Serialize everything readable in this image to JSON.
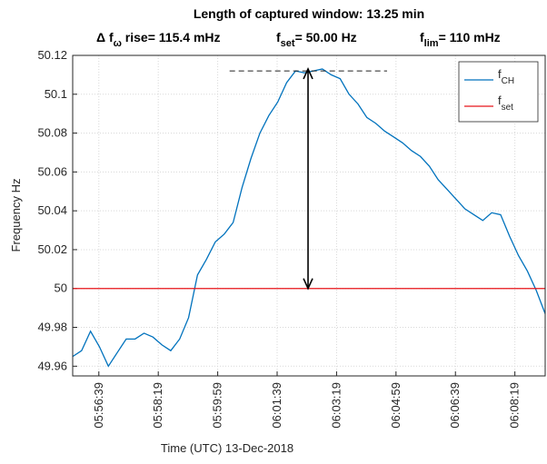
{
  "chart_data": {
    "type": "line",
    "title": "Length of captured window: 13.25 min",
    "subtitle_parts": [
      {
        "text": "Δ f",
        "sub": "ω",
        "rest": " rise= 115.4 mHz"
      },
      {
        "text": "f",
        "sub": "set",
        "rest": "= 50.00 Hz"
      },
      {
        "text": "f",
        "sub": "lim",
        "rest": "= 110 mHz"
      }
    ],
    "xlabel": "Time (UTC) 13-Dec-2018",
    "ylabel": "Frequency Hz",
    "xlim": [
      "05:55:55",
      "06:09:10"
    ],
    "xticks": [
      "05:56:39",
      "05:58:19",
      "05:59:59",
      "06:01:39",
      "06:03:19",
      "06:04:59",
      "06:06:39",
      "06:08:19"
    ],
    "ylim": [
      49.955,
      50.12
    ],
    "yticks": [
      49.96,
      49.98,
      50,
      50.02,
      50.04,
      50.06,
      50.08,
      50.1,
      50.12
    ],
    "grid": true,
    "legend": "northeast",
    "series": [
      {
        "name": "f",
        "subscript": "CH",
        "color": "#0072bd",
        "x": [
          "05:55:55",
          "05:56:10",
          "05:56:25",
          "05:56:40",
          "05:56:55",
          "05:57:10",
          "05:57:25",
          "05:57:40",
          "05:57:55",
          "05:58:10",
          "05:58:25",
          "05:58:40",
          "05:58:55",
          "05:59:10",
          "05:59:25",
          "05:59:40",
          "05:59:55",
          "06:00:10",
          "06:00:25",
          "06:00:40",
          "06:00:55",
          "06:01:10",
          "06:01:25",
          "06:01:40",
          "06:01:55",
          "06:02:10",
          "06:02:25",
          "06:02:40",
          "06:02:55",
          "06:03:10",
          "06:03:25",
          "06:03:40",
          "06:03:55",
          "06:04:10",
          "06:04:25",
          "06:04:40",
          "06:04:55",
          "06:05:10",
          "06:05:25",
          "06:05:40",
          "06:05:55",
          "06:06:10",
          "06:06:25",
          "06:06:40",
          "06:06:55",
          "06:07:10",
          "06:07:25",
          "06:07:40",
          "06:07:55",
          "06:08:10",
          "06:08:25",
          "06:08:40",
          "06:08:55",
          "06:09:10"
        ],
        "values": [
          49.965,
          49.968,
          49.978,
          49.97,
          49.96,
          49.967,
          49.974,
          49.974,
          49.977,
          49.975,
          49.971,
          49.968,
          49.974,
          49.985,
          50.007,
          50.015,
          50.024,
          50.028,
          50.034,
          50.052,
          50.067,
          50.08,
          50.089,
          50.096,
          50.106,
          50.112,
          50.111,
          50.112,
          50.113,
          50.11,
          50.108,
          50.1,
          50.095,
          50.088,
          50.085,
          50.081,
          50.078,
          50.075,
          50.071,
          50.068,
          50.063,
          50.056,
          50.051,
          50.046,
          50.041,
          50.038,
          50.035,
          50.039,
          50.038,
          50.027,
          50.017,
          50.009,
          49.999,
          49.987
        ]
      },
      {
        "name": "f",
        "subscript": "set",
        "color": "#e8141a",
        "x": [
          "05:55:55",
          "06:09:10"
        ],
        "values": [
          50,
          50
        ]
      }
    ],
    "hline": {
      "x": [
        "06:00:19",
        "06:04:44"
      ],
      "y": 50.112
    },
    "arrow": {
      "x": "06:02:31",
      "y": [
        50,
        50.113
      ]
    }
  }
}
